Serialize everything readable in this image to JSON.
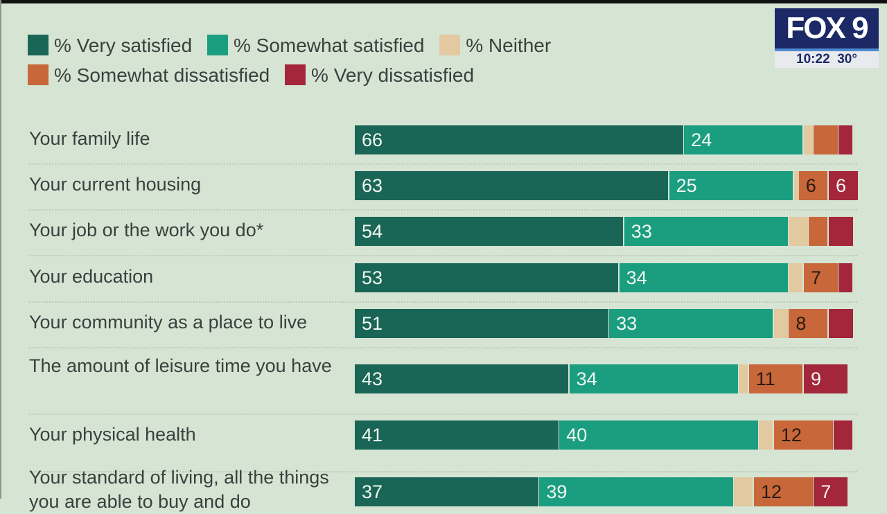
{
  "chart_data": {
    "type": "bar",
    "orientation": "horizontal",
    "stacked": true,
    "categories": [
      "Your family life",
      "Your current housing",
      "Your job or the work you do*",
      "Your education",
      "Your community as a place to live",
      "The amount of leisure time you have",
      "Your physical health",
      "Your standard of living, all the things you are able to buy and do"
    ],
    "series": [
      {
        "name": "% Very satisfied",
        "color": "#1a6656",
        "values": [
          66,
          63,
          54,
          53,
          51,
          43,
          41,
          37
        ],
        "labels": [
          "66",
          "63",
          "54",
          "53",
          "51",
          "43",
          "41",
          "37"
        ]
      },
      {
        "name": "% Somewhat satisfied",
        "color": "#1b9e80",
        "values": [
          24,
          25,
          33,
          34,
          33,
          34,
          40,
          39
        ],
        "labels": [
          "24",
          "25",
          "33",
          "34",
          "33",
          "34",
          "40",
          "39"
        ]
      },
      {
        "name": "% Neither",
        "color": "#e2c9a0",
        "values": [
          2,
          1,
          4,
          3,
          3,
          2,
          3,
          4
        ],
        "labels": [
          "",
          "",
          "",
          "",
          "",
          "",
          "",
          ""
        ]
      },
      {
        "name": "% Somewhat dissatisfied",
        "color": "#c7673a",
        "values": [
          5,
          6,
          4,
          7,
          8,
          11,
          12,
          12
        ],
        "labels": [
          "",
          "6",
          "",
          "7",
          "8",
          "11",
          "12",
          "12"
        ]
      },
      {
        "name": "% Very dissatisfied",
        "color": "#a3263b",
        "values": [
          3,
          6,
          5,
          3,
          5,
          9,
          4,
          7
        ],
        "labels": [
          "",
          "6",
          "",
          "",
          "",
          "9",
          "",
          "7"
        ]
      }
    ],
    "xlim": [
      0,
      100
    ],
    "grid": false,
    "legend": "top"
  },
  "overlay": {
    "logo": "FOX 9",
    "time": "10:22",
    "temperature": "30°"
  }
}
